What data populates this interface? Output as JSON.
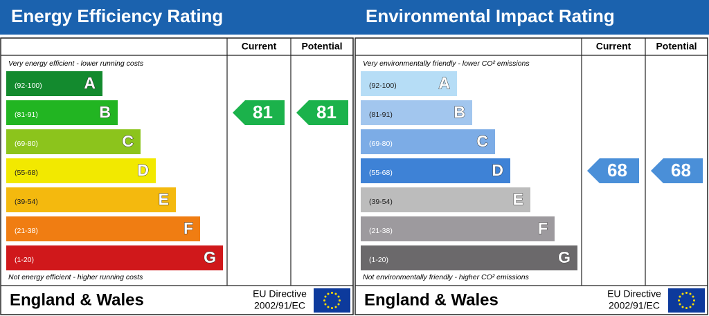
{
  "panels": [
    {
      "title": "Energy Efficiency Rating",
      "columns": [
        "Current",
        "Potential"
      ],
      "top_note": "Very energy efficient - lower running costs",
      "bands": [
        {
          "range": "(92-100)",
          "letter": "A",
          "color": "#138a2e",
          "text_color": "#ffffff"
        },
        {
          "range": "(81-91)",
          "letter": "B",
          "color": "#22b522",
          "text_color": "#ffffff"
        },
        {
          "range": "(69-80)",
          "letter": "C",
          "color": "#8cc41c",
          "text_color": "#ffffff"
        },
        {
          "range": "(55-68)",
          "letter": "D",
          "color": "#f2e900",
          "text_color": "#222222"
        },
        {
          "range": "(39-54)",
          "letter": "E",
          "color": "#f4b90e",
          "text_color": "#222222"
        },
        {
          "range": "(21-38)",
          "letter": "F",
          "color": "#f07d12",
          "text_color": "#ffffff"
        },
        {
          "range": "(1-20)",
          "letter": "G",
          "color": "#d0181b",
          "text_color": "#ffffff"
        }
      ],
      "bottom_note": "Not energy efficient - higher running costs",
      "current": 81,
      "potential": 81,
      "arrow_color": "#1bb24b",
      "footer": "England & Wales",
      "directive": [
        "EU Directive",
        "2002/91/EC"
      ]
    },
    {
      "title": "Environmental Impact Rating",
      "columns": [
        "Current",
        "Potential"
      ],
      "top_note": "Very environmentally friendly - lower CO² emissions",
      "bands": [
        {
          "range": "(92-100)",
          "letter": "A",
          "color": "#b6ddf6",
          "text_color": "#222222"
        },
        {
          "range": "(81-91)",
          "letter": "B",
          "color": "#a2c6ee",
          "text_color": "#222222"
        },
        {
          "range": "(69-80)",
          "letter": "C",
          "color": "#7cace6",
          "text_color": "#ffffff"
        },
        {
          "range": "(55-68)",
          "letter": "D",
          "color": "#3e82d6",
          "text_color": "#ffffff"
        },
        {
          "range": "(39-54)",
          "letter": "E",
          "color": "#bcbcbc",
          "text_color": "#222222"
        },
        {
          "range": "(21-38)",
          "letter": "F",
          "color": "#9d9a9e",
          "text_color": "#ffffff"
        },
        {
          "range": "(1-20)",
          "letter": "G",
          "color": "#6b696b",
          "text_color": "#ffffff"
        }
      ],
      "bottom_note": "Not environmentally friendly - higher CO² emissions",
      "current": 68,
      "potential": 68,
      "arrow_color": "#4a8fd8",
      "footer": "England & Wales",
      "directive": [
        "EU Directive",
        "2002/91/EC"
      ]
    }
  ]
}
